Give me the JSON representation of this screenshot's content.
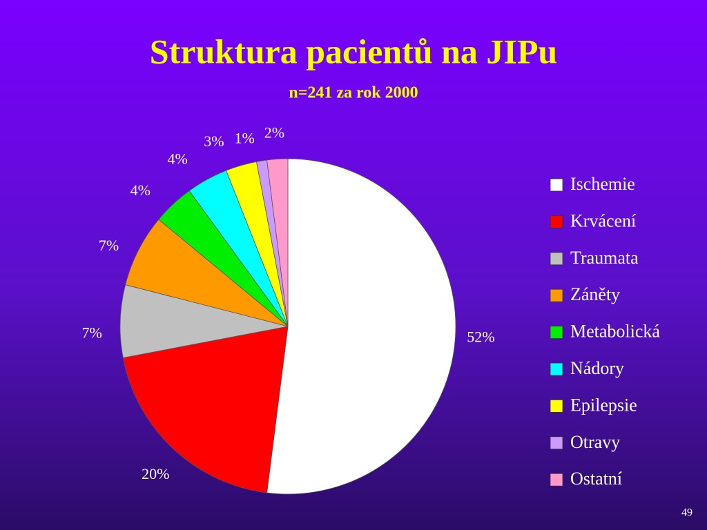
{
  "chart_data": {
    "type": "pie",
    "title": "Struktura pacientů na JIPu",
    "subtitle": "n=241 za rok 2000",
    "categories": [
      "Ischemie",
      "Krvácení",
      "Traumata",
      "Záněty",
      "Metabolická",
      "Nádory",
      "Epilepsie",
      "Otravy",
      "Ostatní"
    ],
    "values": [
      52,
      20,
      7,
      7,
      4,
      4,
      3,
      1,
      2
    ],
    "value_labels": [
      "52%",
      "20%",
      "7%",
      "7%",
      "4%",
      "4%",
      "3%",
      "1%",
      "2%"
    ],
    "colors": [
      "#ffffff",
      "#ff0000",
      "#c0c0c0",
      "#ff9900",
      "#00ee00",
      "#00ffff",
      "#ffff00",
      "#cc99ff",
      "#ff99cc"
    ],
    "legend": "right"
  },
  "slide_number": "49"
}
